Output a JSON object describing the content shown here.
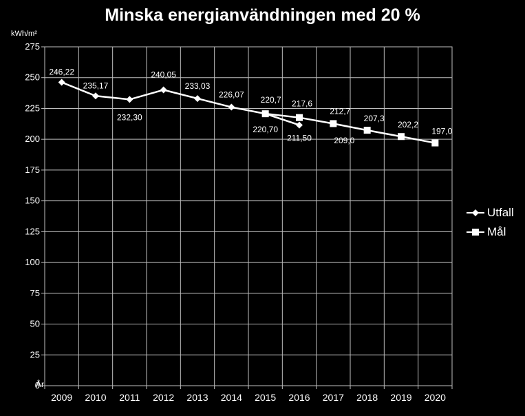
{
  "chart_data": {
    "type": "line",
    "title": "Minska energianvändningen med 20 %",
    "ylabel": "kWh/m²",
    "xlabel": "År",
    "ylim": [
      0,
      275
    ],
    "yticks": [
      "0",
      "25",
      "50",
      "75",
      "100",
      "125",
      "150",
      "175",
      "200",
      "225",
      "250",
      "275"
    ],
    "categories": [
      "2009",
      "2010",
      "2011",
      "2012",
      "2013",
      "2014",
      "2015",
      "2016",
      "2017",
      "2018",
      "2019",
      "2020"
    ],
    "grid": true,
    "legend_position": "right",
    "series": [
      {
        "name": "Utfall",
        "marker": "diamond",
        "color": "#ffffff",
        "values": [
          246.22,
          235.17,
          232.3,
          240.05,
          233.03,
          226.07,
          220.7,
          211.5,
          null,
          null,
          null,
          null
        ],
        "labels": [
          "246,22",
          "235,17",
          "232,30",
          "240,05",
          "233,03",
          "226,07",
          "220,70",
          "211,50",
          "",
          "",
          "",
          ""
        ]
      },
      {
        "name": "Mål",
        "marker": "square",
        "color": "#ffffff",
        "values": [
          null,
          null,
          null,
          null,
          null,
          null,
          220.7,
          217.6,
          212.7,
          207.3,
          202.2,
          197.0
        ],
        "labels": [
          "",
          "",
          "",
          "",
          "",
          "",
          "220,7",
          "217,6",
          "212,7",
          "207,3",
          "202,2",
          "197,0"
        ]
      }
    ],
    "extra_labels": [
      {
        "text": "209,0",
        "category": "2017",
        "value": 209.0
      }
    ]
  }
}
